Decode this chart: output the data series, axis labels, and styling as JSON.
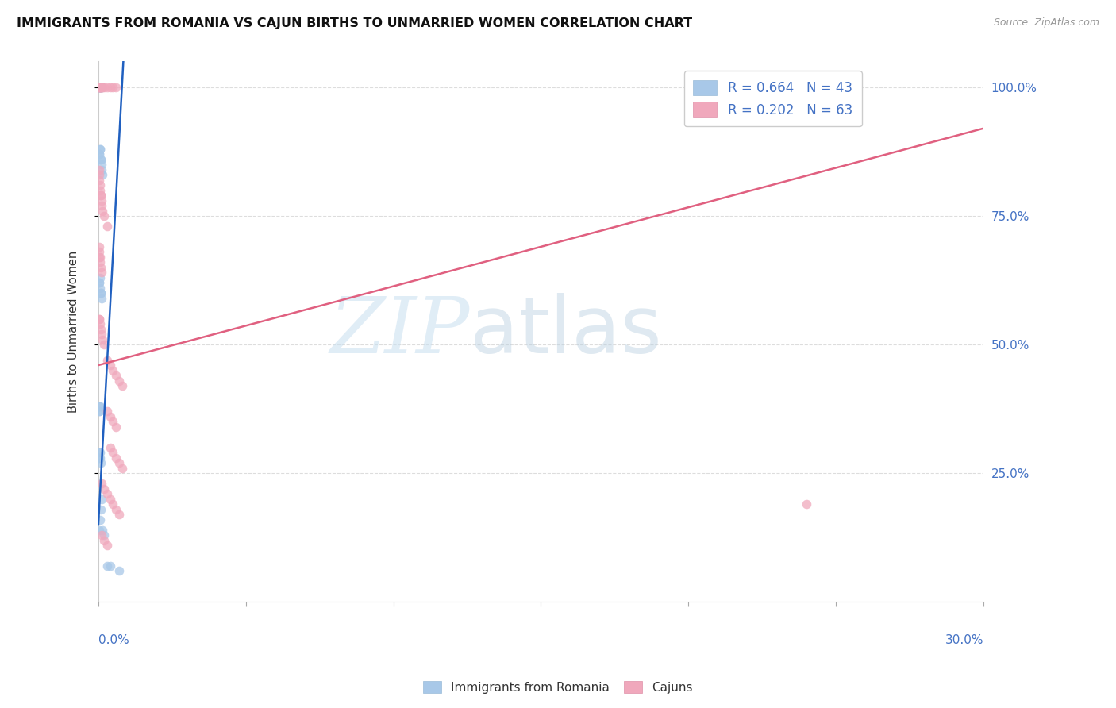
{
  "title": "IMMIGRANTS FROM ROMANIA VS CAJUN BIRTHS TO UNMARRIED WOMEN CORRELATION CHART",
  "source": "Source: ZipAtlas.com",
  "ylabel": "Births to Unmarried Women",
  "legend_bottom": [
    "Immigrants from Romania",
    "Cajuns"
  ],
  "romania_color": "#a8c8e8",
  "cajun_color": "#f0a8bc",
  "romania_line_color": "#2060c0",
  "cajun_line_color": "#e06080",
  "romania_scatter": {
    "x": [
      0.0002,
      0.0003,
      0.0004,
      0.0005,
      0.0006,
      0.0007,
      0.0008,
      0.001,
      0.0012,
      0.0003,
      0.0004,
      0.0005,
      0.0006,
      0.0007,
      0.0008,
      0.001,
      0.0012,
      0.0015,
      0.0003,
      0.0004,
      0.0005,
      0.0006,
      0.0007,
      0.0008,
      0.001,
      0.0002,
      0.0003,
      0.0004,
      0.0005,
      0.0003,
      0.0004,
      0.0005,
      0.0006,
      0.0007,
      0.0003,
      0.0005,
      0.0008,
      0.001,
      0.0013,
      0.002,
      0.003,
      0.004,
      0.007
    ],
    "y": [
      1.0,
      1.0,
      1.0,
      1.0,
      1.0,
      1.0,
      1.0,
      1.0,
      1.0,
      0.87,
      0.87,
      0.88,
      0.88,
      0.86,
      0.86,
      0.85,
      0.84,
      0.83,
      0.62,
      0.62,
      0.63,
      0.61,
      0.6,
      0.6,
      0.59,
      0.37,
      0.38,
      0.37,
      0.38,
      0.29,
      0.28,
      0.29,
      0.28,
      0.27,
      0.14,
      0.16,
      0.18,
      0.2,
      0.14,
      0.13,
      0.07,
      0.07,
      0.06
    ]
  },
  "cajun_scatter": {
    "x": [
      0.0002,
      0.0003,
      0.0004,
      0.0005,
      0.0006,
      0.0007,
      0.0008,
      0.001,
      0.0012,
      0.0015,
      0.002,
      0.003,
      0.004,
      0.005,
      0.006,
      0.0002,
      0.0003,
      0.0004,
      0.0005,
      0.0006,
      0.0007,
      0.0008,
      0.001,
      0.0012,
      0.0015,
      0.002,
      0.003,
      0.0002,
      0.0003,
      0.0004,
      0.0005,
      0.0006,
      0.0008,
      0.001,
      0.0002,
      0.0003,
      0.0005,
      0.0007,
      0.001,
      0.0015,
      0.002,
      0.003,
      0.004,
      0.005,
      0.006,
      0.007,
      0.008,
      0.003,
      0.004,
      0.005,
      0.006,
      0.004,
      0.005,
      0.006,
      0.007,
      0.008,
      0.001,
      0.002,
      0.003,
      0.004,
      0.005,
      0.006,
      0.007,
      0.001,
      0.002,
      0.003,
      0.24
    ],
    "y": [
      1.0,
      1.0,
      1.0,
      1.0,
      1.0,
      1.0,
      1.0,
      1.0,
      1.0,
      1.0,
      1.0,
      1.0,
      1.0,
      1.0,
      1.0,
      0.84,
      0.83,
      0.82,
      0.81,
      0.8,
      0.79,
      0.79,
      0.78,
      0.77,
      0.76,
      0.75,
      0.73,
      0.69,
      0.68,
      0.67,
      0.67,
      0.66,
      0.65,
      0.64,
      0.55,
      0.55,
      0.54,
      0.53,
      0.52,
      0.51,
      0.5,
      0.47,
      0.46,
      0.45,
      0.44,
      0.43,
      0.42,
      0.37,
      0.36,
      0.35,
      0.34,
      0.3,
      0.29,
      0.28,
      0.27,
      0.26,
      0.23,
      0.22,
      0.21,
      0.2,
      0.19,
      0.18,
      0.17,
      0.13,
      0.12,
      0.11,
      0.19
    ]
  },
  "xmin": 0.0,
  "xmax": 0.3,
  "ymin": 0.0,
  "ymax": 1.05,
  "yticks": [
    0.25,
    0.5,
    0.75,
    1.0
  ],
  "ytick_labels": [
    "25.0%",
    "50.0%",
    "75.0%",
    "100.0%"
  ]
}
